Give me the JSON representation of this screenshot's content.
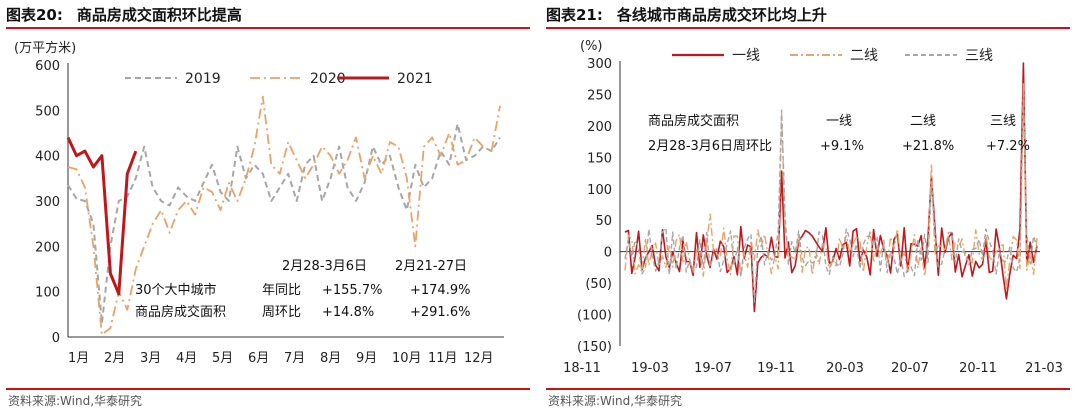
{
  "left": {
    "fig_num": "图表20:",
    "fig_title": "商品房成交面积环比提高",
    "source": "资料来源:Wind,华泰研究",
    "note": {
      "row_header_1": "30个大中城市",
      "row_header_2": "商品房成交面积",
      "col_header_1": "2月28-3月6日",
      "col_header_2": "2月21-27日",
      "yoy_label": "年同比",
      "wow_label": "周环比",
      "yoy_1": "+155.7%",
      "yoy_2": "+174.9%",
      "wow_1": "+14.8%",
      "wow_2": "+291.6%"
    }
  },
  "right": {
    "fig_num": "图表21:",
    "fig_title": "各线城市商品房成交环比均上升",
    "source": "资料来源:Wind,华泰研究",
    "note": {
      "label_1": "商品房成交面积",
      "label_2": "2月28-3月6日周环比",
      "tier_1": "一线",
      "tier_2": "二线",
      "tier_3": "三线",
      "val_1": "+9.1%",
      "val_2": "+21.8%",
      "val_3": "+7.2%"
    }
  },
  "chart_data": [
    {
      "type": "line",
      "unit_label": "(万平方米)",
      "ylim": [
        0,
        600
      ],
      "yticks": [
        "0",
        "100",
        "200",
        "300",
        "400",
        "500",
        "600"
      ],
      "xticks": [
        "1月",
        "2月",
        "3月",
        "4月",
        "5月",
        "6月",
        "7月",
        "8月",
        "9月",
        "10月",
        "11月",
        "12月"
      ],
      "xlim_weeks": [
        1,
        52
      ],
      "legend_position": "top",
      "series": [
        {
          "name": "2019",
          "color": "#a6a6a6",
          "dash": "6,4",
          "width": 2,
          "values": [
            335,
            305,
            300,
            250,
            30,
            200,
            300,
            310,
            350,
            420,
            330,
            300,
            290,
            330,
            310,
            300,
            340,
            380,
            320,
            300,
            420,
            350,
            380,
            360,
            300,
            330,
            360,
            300,
            380,
            400,
            300,
            350,
            420,
            330,
            300,
            340,
            420,
            380,
            400,
            330,
            280,
            380,
            330,
            350,
            410,
            380,
            470,
            390,
            400,
            420,
            410,
            440
          ]
        },
        {
          "name": "2020",
          "color": "#e8a36a",
          "dash": "10,4,2,4",
          "width": 1.8,
          "values": [
            375,
            370,
            330,
            200,
            5,
            20,
            100,
            60,
            150,
            200,
            250,
            280,
            230,
            280,
            300,
            270,
            330,
            320,
            280,
            340,
            300,
            350,
            420,
            530,
            380,
            360,
            430,
            390,
            350,
            380,
            420,
            400,
            360,
            390,
            440,
            350,
            400,
            360,
            430,
            420,
            350,
            200,
            420,
            440,
            400,
            450,
            380,
            390,
            440,
            420,
            410,
            510
          ]
        },
        {
          "name": "2021",
          "color": "#c0181a",
          "dash": "",
          "width": 3,
          "values": [
            440,
            400,
            410,
            375,
            400,
            140,
            95,
            360,
            410
          ]
        }
      ]
    },
    {
      "type": "line",
      "unit_label": "(%)",
      "ylim": [
        -150,
        300
      ],
      "yticks": [
        "(150)",
        "(100)",
        "(50)",
        "0",
        "50",
        "100",
        "150",
        "200",
        "250",
        "300"
      ],
      "xticks": [
        "18-11",
        "19-03",
        "19-07",
        "19-11",
        "20-03",
        "20-07",
        "20-11",
        "21-03"
      ],
      "legend_position": "top",
      "series": [
        {
          "name": "一线",
          "color": "#c0181a",
          "dash": "",
          "width": 1.6
        },
        {
          "name": "二线",
          "color": "#e8a36a",
          "dash": "8,3,2,3",
          "width": 1.4
        },
        {
          "name": "三线",
          "color": "#a6a6a6",
          "dash": "5,3",
          "width": 1.4
        }
      ]
    }
  ]
}
